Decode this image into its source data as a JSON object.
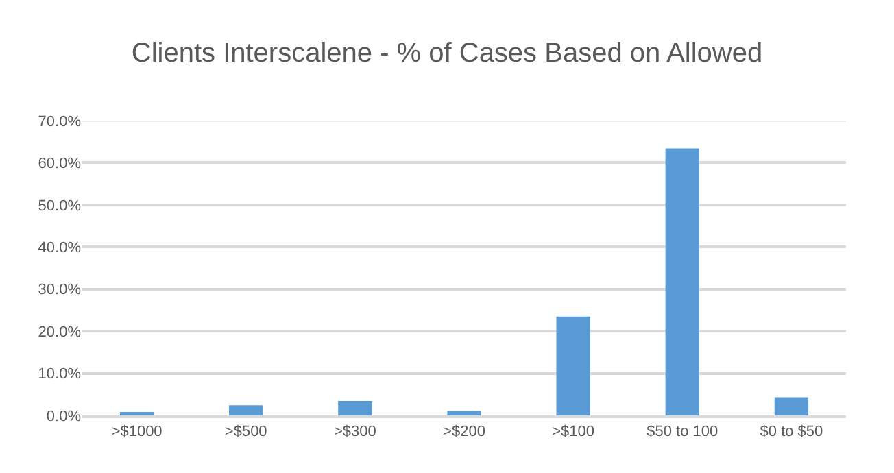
{
  "chart_data": {
    "type": "bar",
    "title": "Clients Interscalene - % of Cases Based on Allowed",
    "categories": [
      ">$1000",
      ">$500",
      ">$300",
      ">$200",
      ">$100",
      "$50 to 100",
      "$0 to $50"
    ],
    "values": [
      0.8,
      2.4,
      3.4,
      1.0,
      23.5,
      63.4,
      4.3
    ],
    "color": "#5b9bd5",
    "ylim": [
      0,
      70
    ],
    "yticks": [
      {
        "value": 0,
        "label": "0.0%"
      },
      {
        "value": 10,
        "label": "10.0%"
      },
      {
        "value": 20,
        "label": "20.0%"
      },
      {
        "value": 30,
        "label": "30.0%"
      },
      {
        "value": 40,
        "label": "40.0%"
      },
      {
        "value": 50,
        "label": "50.0%"
      },
      {
        "value": 60,
        "label": "60.0%"
      },
      {
        "value": 70,
        "label": "70.0%"
      }
    ],
    "grid": "y"
  }
}
